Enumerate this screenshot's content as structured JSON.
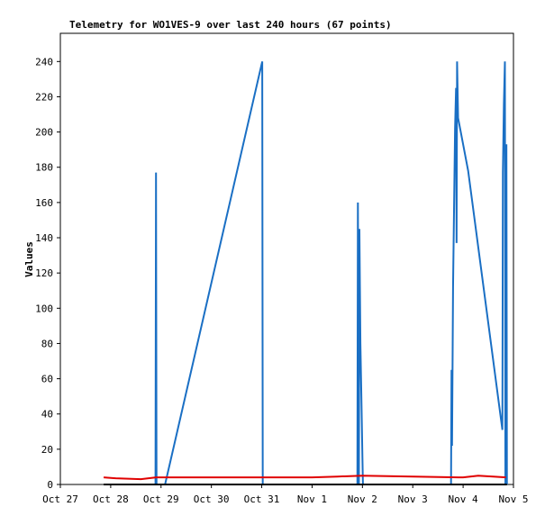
{
  "chart_data": {
    "type": "line",
    "title": "Telemetry for WO1VES-9 over last 240 hours (67 points)",
    "y_label": "Values",
    "xlim": [
      0,
      9
    ],
    "ylim": [
      0,
      256
    ],
    "xticks": [
      {
        "value": 0,
        "label": "Oct 27"
      },
      {
        "value": 1,
        "label": "Oct 28"
      },
      {
        "value": 2,
        "label": "Oct 29"
      },
      {
        "value": 3,
        "label": "Oct 30"
      },
      {
        "value": 4,
        "label": "Oct 31"
      },
      {
        "value": 5,
        "label": "Nov 1"
      },
      {
        "value": 6,
        "label": "Nov 2"
      },
      {
        "value": 7,
        "label": "Nov 3"
      },
      {
        "value": 8,
        "label": "Nov 4"
      },
      {
        "value": 9,
        "label": "Nov 5"
      }
    ],
    "yticks": [
      0,
      20,
      40,
      60,
      80,
      100,
      120,
      140,
      160,
      180,
      200,
      220,
      240
    ],
    "series": [
      {
        "color": "#1a6fc4",
        "x": [
          0.86,
          1.89,
          1.9,
          1.91,
          2.08,
          4.01,
          4.02,
          5.9,
          5.91,
          5.93,
          5.94,
          5.95,
          5.96,
          5.98,
          6.0,
          6.01,
          7.76,
          7.77,
          7.78,
          7.8,
          7.82,
          7.84,
          7.86,
          7.87,
          7.88,
          7.9,
          8.1,
          8.78,
          8.79,
          8.81,
          8.83,
          8.84,
          8.86,
          8.87
        ],
        "values": [
          0,
          0,
          177,
          0,
          0,
          240,
          0,
          0,
          160,
          0,
          145,
          112,
          80,
          48,
          15,
          0,
          0,
          65,
          22,
          112,
          157,
          202,
          225,
          137,
          240,
          208,
          178,
          31,
          177,
          216,
          240,
          0,
          193,
          0
        ]
      },
      {
        "color": "#e00000",
        "x": [
          0.86,
          1.1,
          1.6,
          1.9,
          5.0,
          5.5,
          6.0,
          8.0,
          8.3,
          8.6,
          8.85
        ],
        "values": [
          4,
          3.5,
          3,
          4,
          4,
          4.5,
          5,
          4,
          5,
          4.5,
          4
        ]
      },
      {
        "color": "#000000",
        "x": [
          0.86,
          8.87
        ],
        "values": [
          0,
          0
        ]
      }
    ]
  }
}
